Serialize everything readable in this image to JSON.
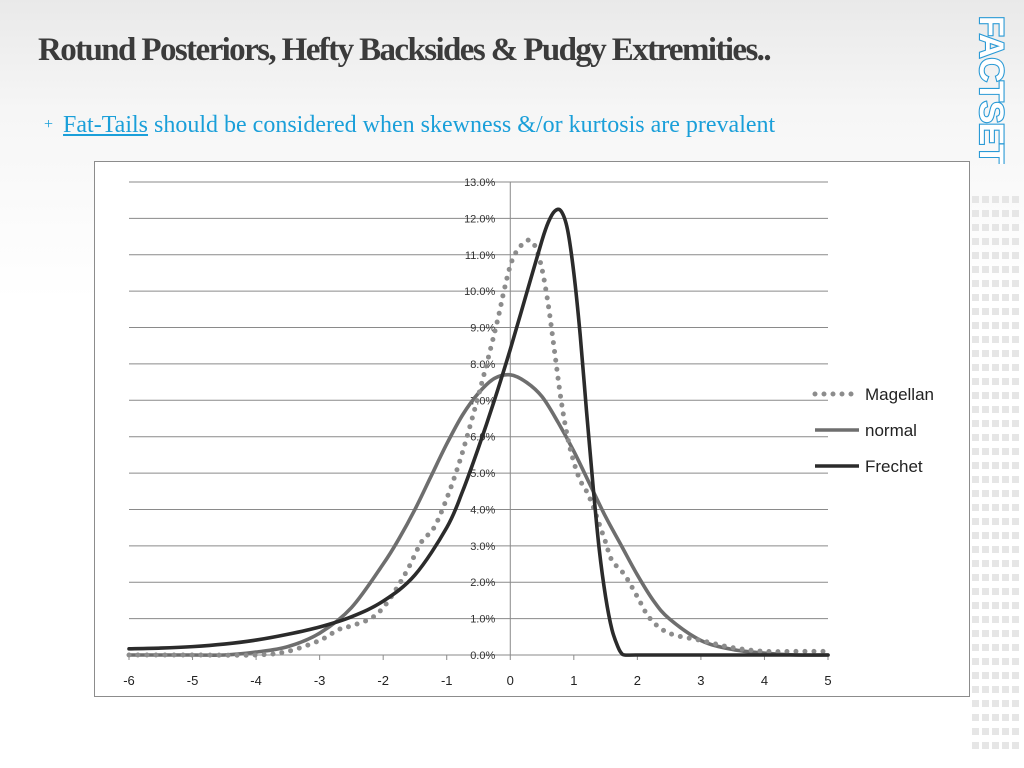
{
  "slide": {
    "title": "Rotund Posteriors, Hefty Backsides & Pudgy Extremities..",
    "bullet_marker": "+",
    "bullet_link": "Fat-Tails",
    "bullet_text": " should be considered when skewness &/or kurtosis are prevalent"
  },
  "logo": {
    "text": "FACTSET",
    "color": "#2a9ad6"
  },
  "colors": {
    "accent": "#1a9fd9",
    "title": "#3b3b3b"
  },
  "chart_data": {
    "type": "line",
    "title": "",
    "xlabel": "",
    "ylabel": "",
    "xlim": [
      -6,
      5
    ],
    "ylim": [
      0,
      0.13
    ],
    "x_ticks": [
      "-6",
      "-5",
      "-4",
      "-3",
      "-2",
      "-1",
      "0",
      "1",
      "2",
      "3",
      "4",
      "5"
    ],
    "x_tick_values": [
      -6,
      -5,
      -4,
      -3,
      -2,
      -1,
      0,
      1,
      2,
      3,
      4,
      5
    ],
    "y_ticks": [
      "0.0%",
      "1.0%",
      "2.0%",
      "3.0%",
      "4.0%",
      "5.0%",
      "6.0%",
      "7.0%",
      "8.0%",
      "9.0%",
      "10.0%",
      "11.0%",
      "12.0%",
      "13.0%"
    ],
    "y_tick_values": [
      0,
      0.01,
      0.02,
      0.03,
      0.04,
      0.05,
      0.06,
      0.07,
      0.08,
      0.09,
      0.1,
      0.11,
      0.12,
      0.13
    ],
    "grid": "horizontal",
    "legend": "right",
    "series": [
      {
        "name": "Magellan",
        "style": "dotted",
        "color": "#8c8c8c",
        "x": [
          -6,
          -5,
          -4,
          -3.5,
          -3,
          -2.7,
          -2.5,
          -2.2,
          -2,
          -1.8,
          -1.6,
          -1.4,
          -1.2,
          -1,
          -0.8,
          -0.6,
          -0.4,
          -0.2,
          -0.1,
          0,
          0.1,
          0.2,
          0.3,
          0.4,
          0.5,
          0.6,
          0.7,
          0.8,
          0.9,
          1,
          1.1,
          1.2,
          1.3,
          1.4,
          1.5,
          1.6,
          1.8,
          2,
          2.2,
          2.5,
          3,
          3.5,
          4,
          4.5,
          5
        ],
        "y": [
          0,
          0,
          0,
          0.001,
          0.004,
          0.007,
          0.008,
          0.01,
          0.013,
          0.018,
          0.024,
          0.031,
          0.035,
          0.043,
          0.053,
          0.065,
          0.078,
          0.092,
          0.1,
          0.107,
          0.111,
          0.113,
          0.114,
          0.112,
          0.106,
          0.096,
          0.083,
          0.07,
          0.06,
          0.053,
          0.048,
          0.045,
          0.041,
          0.036,
          0.031,
          0.026,
          0.022,
          0.016,
          0.01,
          0.006,
          0.004,
          0.002,
          0.001,
          0.001,
          0.001
        ]
      },
      {
        "name": "normal",
        "style": "solid",
        "color": "#6e6e6e",
        "x": [
          -6,
          -5,
          -4.5,
          -4,
          -3.5,
          -3,
          -2.5,
          -2,
          -1.75,
          -1.5,
          -1.25,
          -1,
          -0.75,
          -0.5,
          -0.25,
          0,
          0.25,
          0.5,
          0.75,
          1,
          1.25,
          1.5,
          1.75,
          2,
          2.25,
          2.5,
          3,
          3.5,
          4,
          4.5,
          5
        ],
        "y": [
          0,
          0,
          0,
          0.0008,
          0.0023,
          0.006,
          0.013,
          0.025,
          0.032,
          0.04,
          0.049,
          0.058,
          0.066,
          0.072,
          0.076,
          0.077,
          0.075,
          0.071,
          0.064,
          0.056,
          0.047,
          0.038,
          0.03,
          0.022,
          0.015,
          0.01,
          0.004,
          0.0015,
          0.0005,
          0,
          0
        ]
      },
      {
        "name": "Frechet",
        "style": "solid",
        "color": "#2b2b2b",
        "x": [
          -6,
          -5.5,
          -5,
          -4.5,
          -4,
          -3.5,
          -3,
          -2.5,
          -2,
          -1.5,
          -1,
          -0.75,
          -0.5,
          -0.25,
          0,
          0.25,
          0.5,
          0.6,
          0.7,
          0.8,
          0.9,
          1,
          1.1,
          1.2,
          1.3,
          1.4,
          1.5,
          1.6,
          1.7,
          1.75,
          1.8,
          2,
          3,
          4,
          5
        ],
        "y": [
          0.0017,
          0.0019,
          0.0023,
          0.003,
          0.0041,
          0.0057,
          0.0077,
          0.0105,
          0.0148,
          0.022,
          0.035,
          0.045,
          0.057,
          0.07,
          0.084,
          0.099,
          0.114,
          0.119,
          0.122,
          0.122,
          0.117,
          0.105,
          0.088,
          0.067,
          0.047,
          0.029,
          0.016,
          0.007,
          0.002,
          0.0005,
          0,
          0,
          0,
          0,
          0
        ]
      }
    ]
  }
}
